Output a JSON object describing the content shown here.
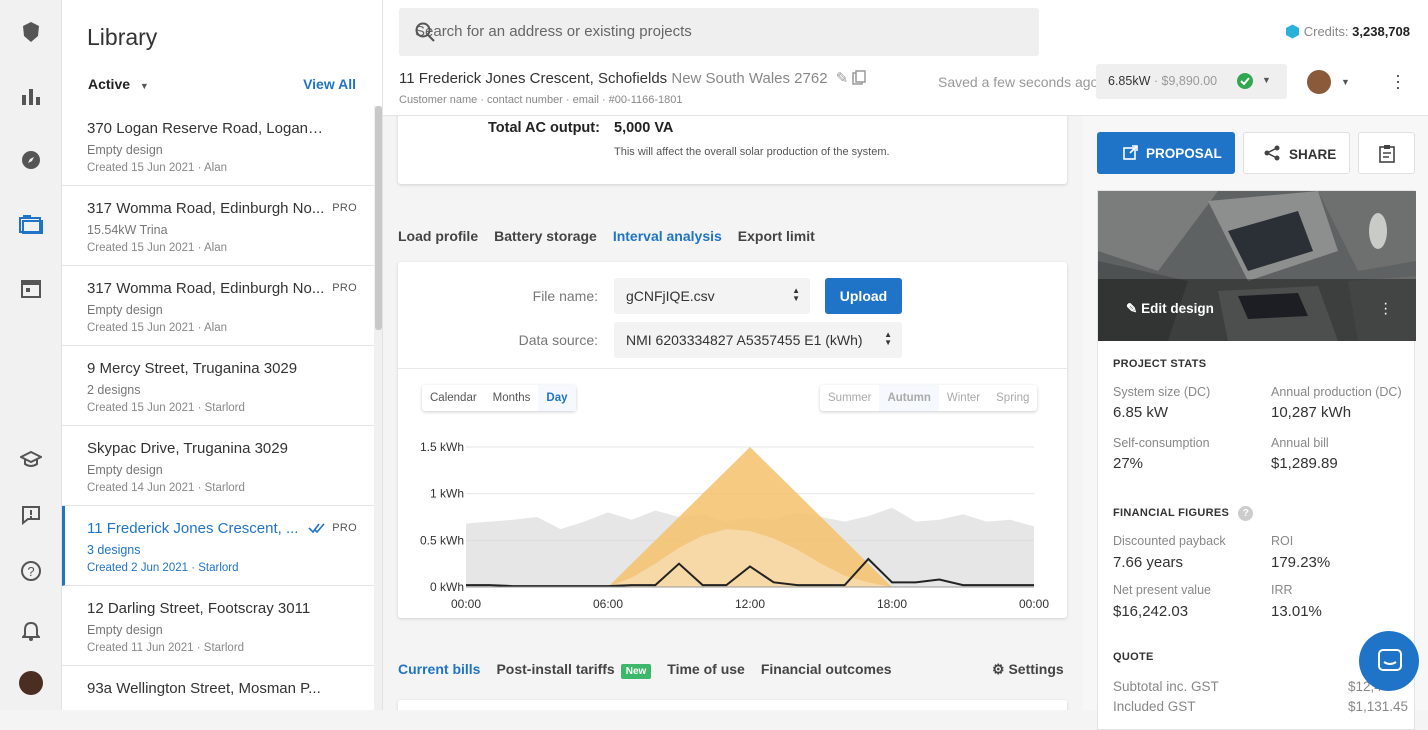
{
  "nav": {
    "icons": [
      "logo-icon",
      "bar-chart-icon",
      "compass-icon",
      "folder-icon",
      "calendar-icon",
      "graduation-cap-icon",
      "feedback-icon",
      "help-icon",
      "bell-icon",
      "user-avatar"
    ]
  },
  "library": {
    "title": "Library",
    "filter": "Active",
    "view_all": "View All",
    "items": [
      {
        "title": "370 Logan Reserve Road, Logan R...",
        "sub": "Empty design",
        "date": "Created 15 Jun 2021 · Alan",
        "pro": ""
      },
      {
        "title": "317 Womma Road, Edinburgh No...",
        "sub": "15.54kW Trina",
        "date": "Created 15 Jun 2021 · Alan",
        "pro": "PRO"
      },
      {
        "title": "317 Womma Road, Edinburgh No...",
        "sub": "Empty design",
        "date": "Created 15 Jun 2021 · Alan",
        "pro": "PRO"
      },
      {
        "title": "9 Mercy Street, Truganina 3029",
        "sub": "2 designs",
        "date": "Created 15 Jun 2021 · Starlord",
        "pro": ""
      },
      {
        "title": "Skypac Drive, Truganina 3029",
        "sub": "Empty design",
        "date": "Created 14 Jun 2021 · Starlord",
        "pro": ""
      },
      {
        "title": "11 Frederick Jones Crescent, ...",
        "sub": "3 designs",
        "date": "Created 2 Jun 2021 · Starlord",
        "pro": "PRO"
      },
      {
        "title": "12 Darling Street, Footscray 3011",
        "sub": "Empty design",
        "date": "Created 11 Jun 2021 · Starlord",
        "pro": ""
      },
      {
        "title": "93a Wellington Street, Mosman P...",
        "sub": "",
        "date": "",
        "pro": ""
      }
    ]
  },
  "header": {
    "search_placeholder": "Search for an address or existing projects",
    "credits_label": "Credits:",
    "credits_value": "3,238,708",
    "address": "11 Frederick Jones Crescent, Schofields",
    "state": "New South Wales 2762",
    "customer": "Customer name · contact number · email · #00-1166-1801",
    "saved": "Saved a few seconds ago",
    "system_size": "6.85kW",
    "system_price": "· $9,890.00"
  },
  "ac": {
    "label": "Total AC output:",
    "value": "5,000 VA",
    "note": "This will affect the overall solar production of the system."
  },
  "tabs1": [
    "Load profile",
    "Battery storage",
    "Interval analysis",
    "Export limit"
  ],
  "tabs1_active": 2,
  "interval": {
    "file_label": "File name:",
    "file_value": "gCNFjIQE.csv",
    "upload": "Upload",
    "source_label": "Data source:",
    "source_value": "NMI 6203334827 A5357455 E1 (kWh)",
    "views": [
      "Calendar",
      "Months",
      "Day"
    ],
    "view_active": 2,
    "seasons": [
      "Summer",
      "Autumn",
      "Winter",
      "Spring"
    ],
    "season_active": 1
  },
  "chart_data": {
    "type": "area",
    "x_ticks": [
      "00:00",
      "06:00",
      "12:00",
      "18:00",
      "00:00"
    ],
    "y_ticks": [
      "1.5 kWh",
      "1 kWh",
      "0.5 kWh",
      "0 kWh"
    ],
    "ylim": [
      0,
      1.5
    ],
    "x": [
      0,
      1,
      2,
      3,
      4,
      5,
      6,
      7,
      8,
      9,
      10,
      11,
      12,
      13,
      14,
      15,
      16,
      17,
      18,
      19,
      20,
      21,
      22,
      23,
      24
    ],
    "series": [
      {
        "color": "#d6d6d6",
        "values": [
          0.68,
          0.7,
          0.72,
          0.75,
          0.62,
          0.7,
          0.8,
          0.72,
          0.82,
          0.75,
          0.78,
          0.7,
          0.75,
          0.72,
          0.8,
          0.75,
          0.7,
          0.76,
          0.85,
          0.7,
          0.72,
          0.78,
          0.7,
          0.72,
          0.65
        ]
      },
      {
        "color": "#f5c26b",
        "values": [
          0,
          0,
          0,
          0,
          0,
          0,
          0,
          0.25,
          0.5,
          0.75,
          1.0,
          1.25,
          1.5,
          1.25,
          1.0,
          0.75,
          0.5,
          0.25,
          0,
          0,
          0,
          0,
          0,
          0,
          0
        ]
      },
      {
        "color": "#f7dcae",
        "values": [
          0,
          0,
          0,
          0,
          0,
          0,
          0,
          0.1,
          0.25,
          0.42,
          0.55,
          0.62,
          0.6,
          0.52,
          0.4,
          0.25,
          0.12,
          0.05,
          0,
          0,
          0,
          0,
          0,
          0,
          0
        ]
      },
      {
        "color": "#222222",
        "values": [
          0.02,
          0.02,
          0.01,
          0.01,
          0.01,
          0.01,
          0.01,
          0.02,
          0.02,
          0.25,
          0.02,
          0.02,
          0.22,
          0.05,
          0.02,
          0.02,
          0.02,
          0.3,
          0.05,
          0.05,
          0.08,
          0.02,
          0.02,
          0.02,
          0.02
        ]
      }
    ]
  },
  "tabs2": [
    "Current bills",
    "Post-install tariffs",
    "Time of use",
    "Financial outcomes"
  ],
  "tabs2_active": 0,
  "new_badge": "New",
  "settings": "Settings",
  "actions": {
    "proposal": "PROPOSAL",
    "share": "SHARE"
  },
  "edit_design": "Edit design",
  "project_stats": {
    "title": "PROJECT STATS",
    "system_size_label": "System size (DC)",
    "system_size": "6.85 kW",
    "annual_prod_label": "Annual production (DC)",
    "annual_prod": "10,287 kWh",
    "self_cons_label": "Self-consumption",
    "self_cons": "27%",
    "annual_bill_label": "Annual bill",
    "annual_bill": "$1,289.89"
  },
  "financial": {
    "title": "FINANCIAL FIGURES",
    "payback_label": "Discounted payback",
    "payback": "7.66 years",
    "roi_label": "ROI",
    "roi": "179.23%",
    "npv_label": "Net present value",
    "npv": "$16,242.03",
    "irr_label": "IRR",
    "irr": "13.01%"
  },
  "quote": {
    "title": "QUOTE",
    "subtotal_label": "Subtotal inc. GST",
    "subtotal": "$12,4",
    "gst_label": "Included GST",
    "gst": "$1,131.45"
  }
}
